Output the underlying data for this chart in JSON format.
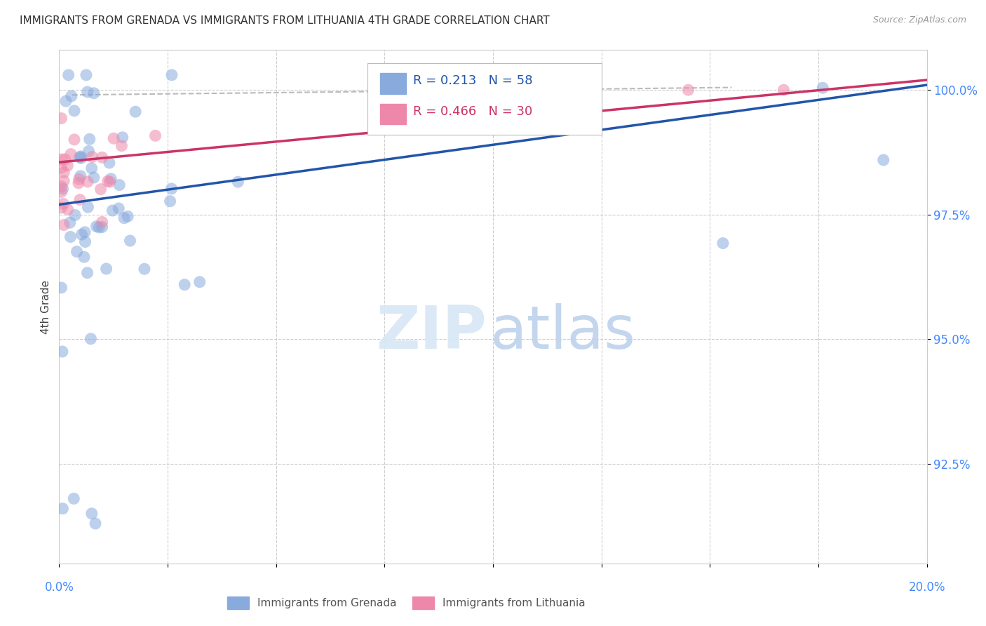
{
  "title": "IMMIGRANTS FROM GRENADA VS IMMIGRANTS FROM LITHUANIA 4TH GRADE CORRELATION CHART",
  "source": "Source: ZipAtlas.com",
  "ylabel": "4th Grade",
  "xlim": [
    0.0,
    20.0
  ],
  "ylim": [
    90.5,
    100.8
  ],
  "yticks": [
    92.5,
    95.0,
    97.5,
    100.0
  ],
  "ytick_labels": [
    "92.5%",
    "95.0%",
    "97.5%",
    "100.0%"
  ],
  "legend_label1": "Immigrants from Grenada",
  "legend_label2": "Immigrants from Lithuania",
  "R1": 0.213,
  "N1": 58,
  "R2": 0.466,
  "N2": 30,
  "color_blue": "#88AADD",
  "color_pink": "#EE88AA",
  "color_line_blue": "#2255AA",
  "color_line_pink": "#CC3366",
  "axis_color": "#4488FF",
  "title_color": "#333333",
  "blue_line": [
    0.0,
    97.7,
    20.0,
    100.1
  ],
  "pink_line": [
    0.0,
    98.55,
    20.0,
    100.2
  ],
  "dash_line": [
    0.3,
    99.9,
    15.5,
    100.05
  ]
}
